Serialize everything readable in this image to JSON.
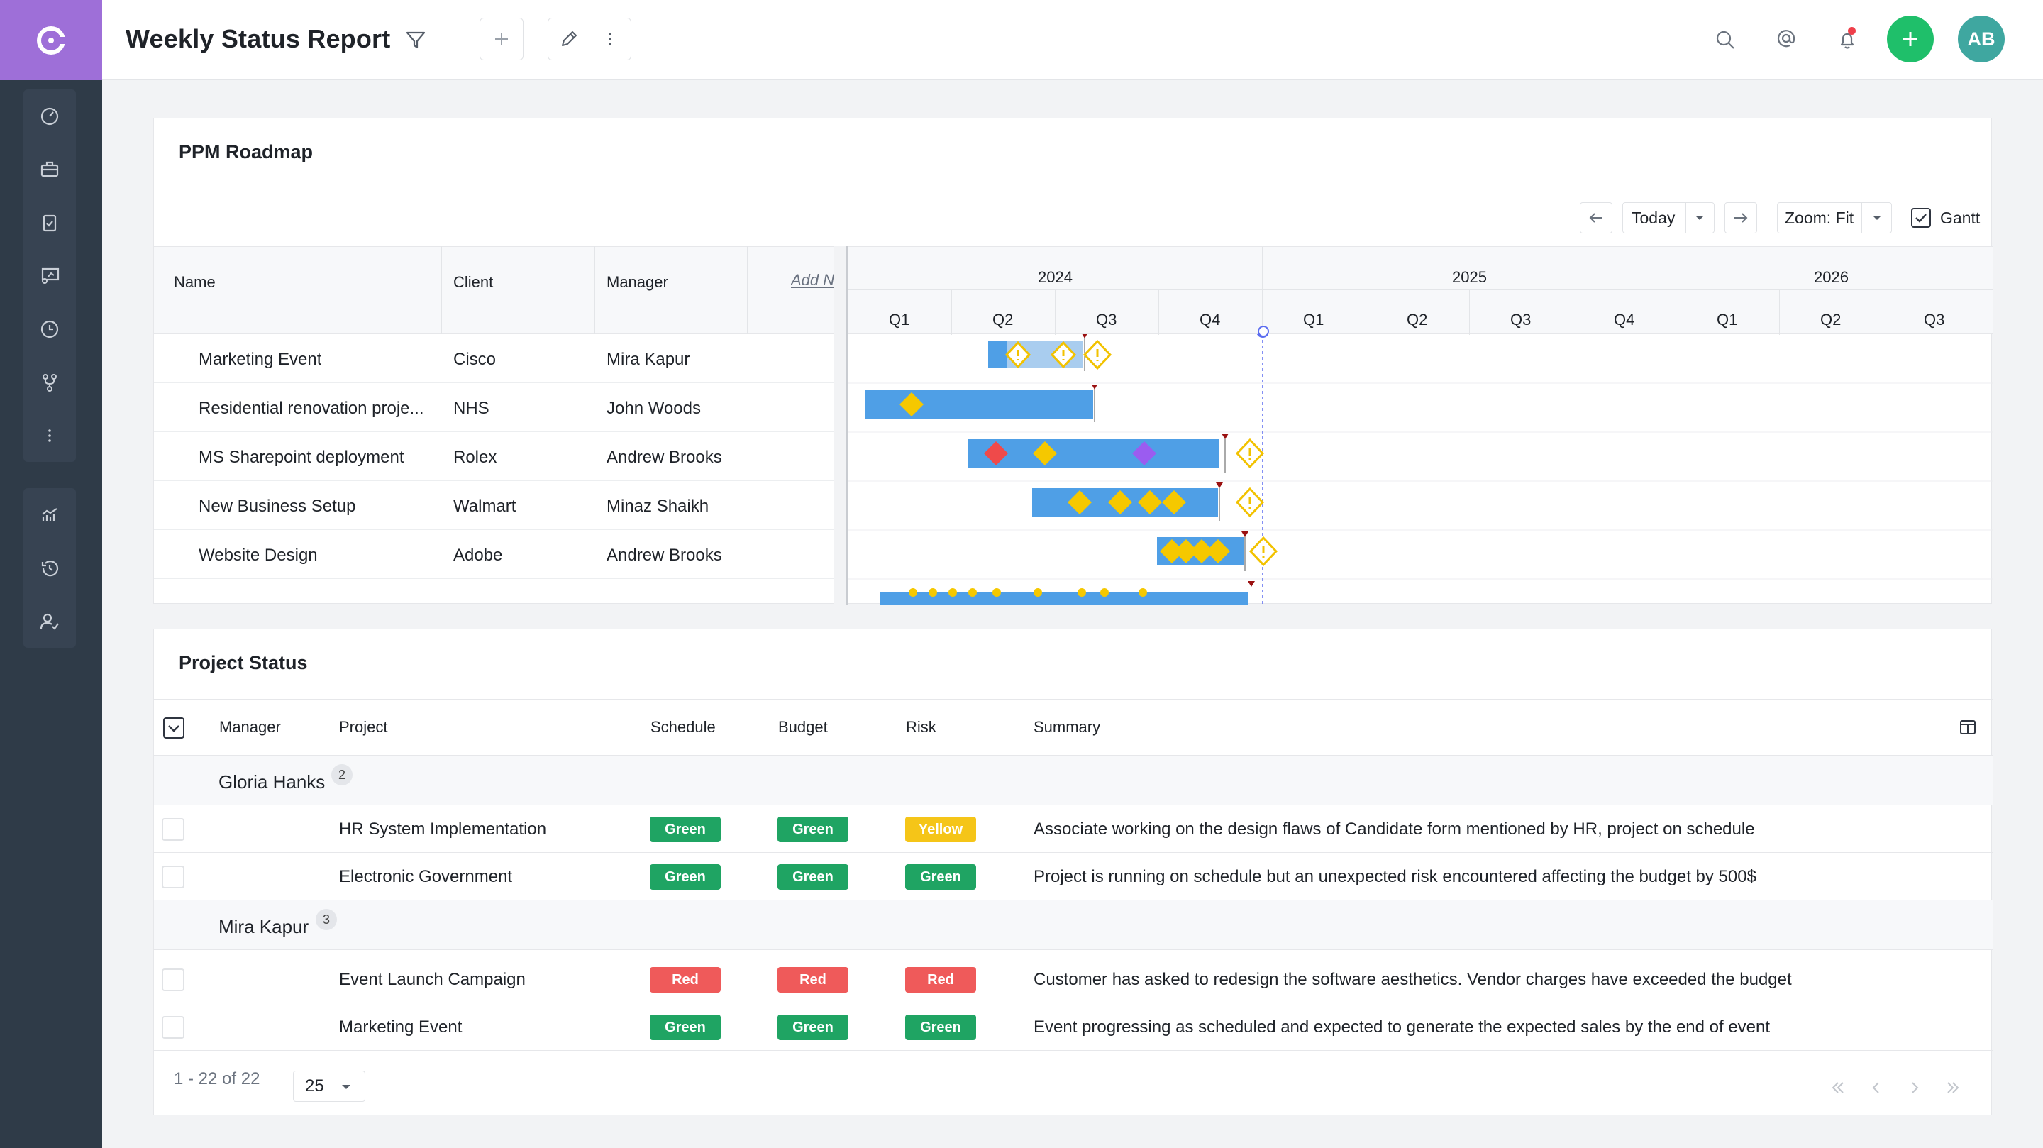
{
  "header": {
    "title": "Weekly Status Report",
    "avatar_initials": "AB",
    "icons": [
      "funnel-icon",
      "plus-icon",
      "pencil-icon",
      "kebab-icon",
      "search-icon",
      "at-icon",
      "bell-icon",
      "plus-icon"
    ]
  },
  "sidebar": {
    "items": [
      "dashboard-icon",
      "briefcase-icon",
      "clipboard-icon",
      "presentation-icon",
      "clock-icon",
      "git-branch-icon",
      "more-icon",
      "analytics-icon",
      "history-icon",
      "user-check-icon"
    ]
  },
  "roadmap": {
    "title": "PPM Roadmap",
    "toolbar": {
      "today_label": "Today",
      "zoom_label": "Zoom: Fit",
      "gantt_label": "Gantt",
      "gantt_checked": true
    },
    "columns": [
      "Name",
      "Client",
      "Manager"
    ],
    "add_column_label": "Add New Column",
    "years": [
      "2024",
      "2025",
      "2026"
    ],
    "quarters": [
      "Q1",
      "Q2",
      "Q3",
      "Q4",
      "Q1",
      "Q2",
      "Q3",
      "Q4",
      "Q1",
      "Q2",
      "Q3"
    ],
    "rows": [
      {
        "name": "Marketing Event",
        "client": "Cisco",
        "manager": "Mira Kapur"
      },
      {
        "name": "Residential renovation proje...",
        "client": "NHS",
        "manager": "John Woods"
      },
      {
        "name": "MS Sharepoint deployment",
        "client": "Rolex",
        "manager": "Andrew Brooks"
      },
      {
        "name": "New Business Setup",
        "client": "Walmart",
        "manager": "Minaz Shaikh"
      },
      {
        "name": "Website Design",
        "client": "Adobe",
        "manager": "Andrew Brooks"
      }
    ]
  },
  "status": {
    "title": "Project Status",
    "columns": {
      "manager": "Manager",
      "project": "Project",
      "schedule": "Schedule",
      "budget": "Budget",
      "risk": "Risk",
      "summary": "Summary"
    },
    "colors": {
      "Green": "#1fa463",
      "Yellow": "#f5c518",
      "Red": "#ef5a5a"
    },
    "groups": [
      {
        "manager": "Gloria Hanks",
        "count": "2",
        "rows": [
          {
            "project": "HR System Implementation",
            "schedule": "Green",
            "budget": "Green",
            "risk": "Yellow",
            "summary": "Associate working on the design flaws of Candidate form mentioned by HR, project on schedule"
          },
          {
            "project": "Electronic Government",
            "schedule": "Green",
            "budget": "Green",
            "risk": "Green",
            "summary": "Project is running on schedule but an unexpected risk encountered affecting the budget by 500$"
          }
        ]
      },
      {
        "manager": "Mira Kapur",
        "count": "3",
        "rows": [
          {
            "project": "Event Launch Campaign",
            "schedule": "Red",
            "budget": "Red",
            "risk": "Red",
            "summary": "Customer has asked to redesign the software aesthetics. Vendor charges have exceeded the budget"
          },
          {
            "project": "Marketing Event",
            "schedule": "Green",
            "budget": "Green",
            "risk": "Green",
            "summary": "Event progressing as scheduled and expected to generate the expected sales by the end of event"
          }
        ]
      }
    ],
    "pagination": {
      "range": "1 - 22 of 22",
      "page_size": "25"
    }
  }
}
